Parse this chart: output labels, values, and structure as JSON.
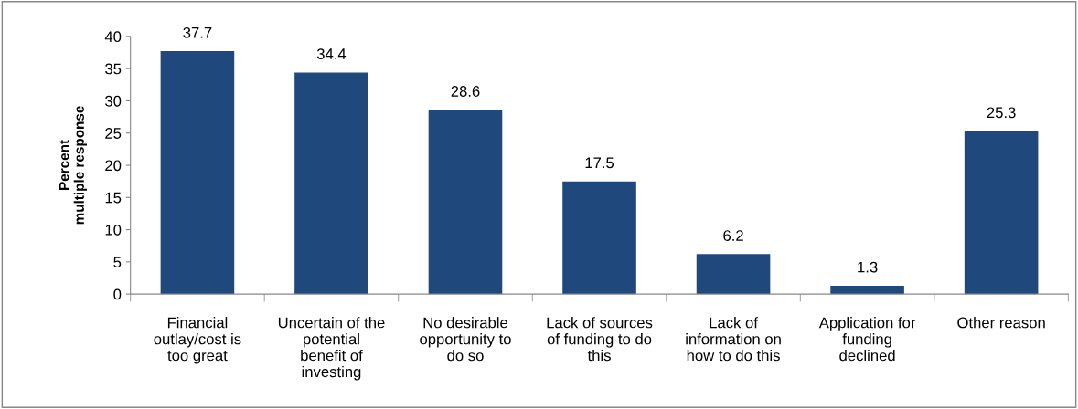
{
  "chart_data": {
    "type": "bar",
    "ylabel": "Percent\nmultiple response",
    "categories": [
      "Financial\noutlay/cost is\ntoo great",
      "Uncertain of the\npotential\nbenefit of\ninvesting",
      "No desirable\nopportunity to\ndo so",
      "Lack of sources\nof funding to do\nthis",
      "Lack of\ninformation on\nhow to do this",
      "Application for\nfunding\ndeclined",
      "Other reason"
    ],
    "values": [
      37.7,
      34.4,
      28.6,
      17.5,
      6.2,
      1.3,
      25.3
    ],
    "color": "#1f497d",
    "ylim": [
      0,
      40
    ],
    "yticks": [
      0,
      5,
      10,
      15,
      20,
      25,
      30,
      35,
      40
    ],
    "grid": false,
    "legend": false,
    "data_labels": true
  }
}
